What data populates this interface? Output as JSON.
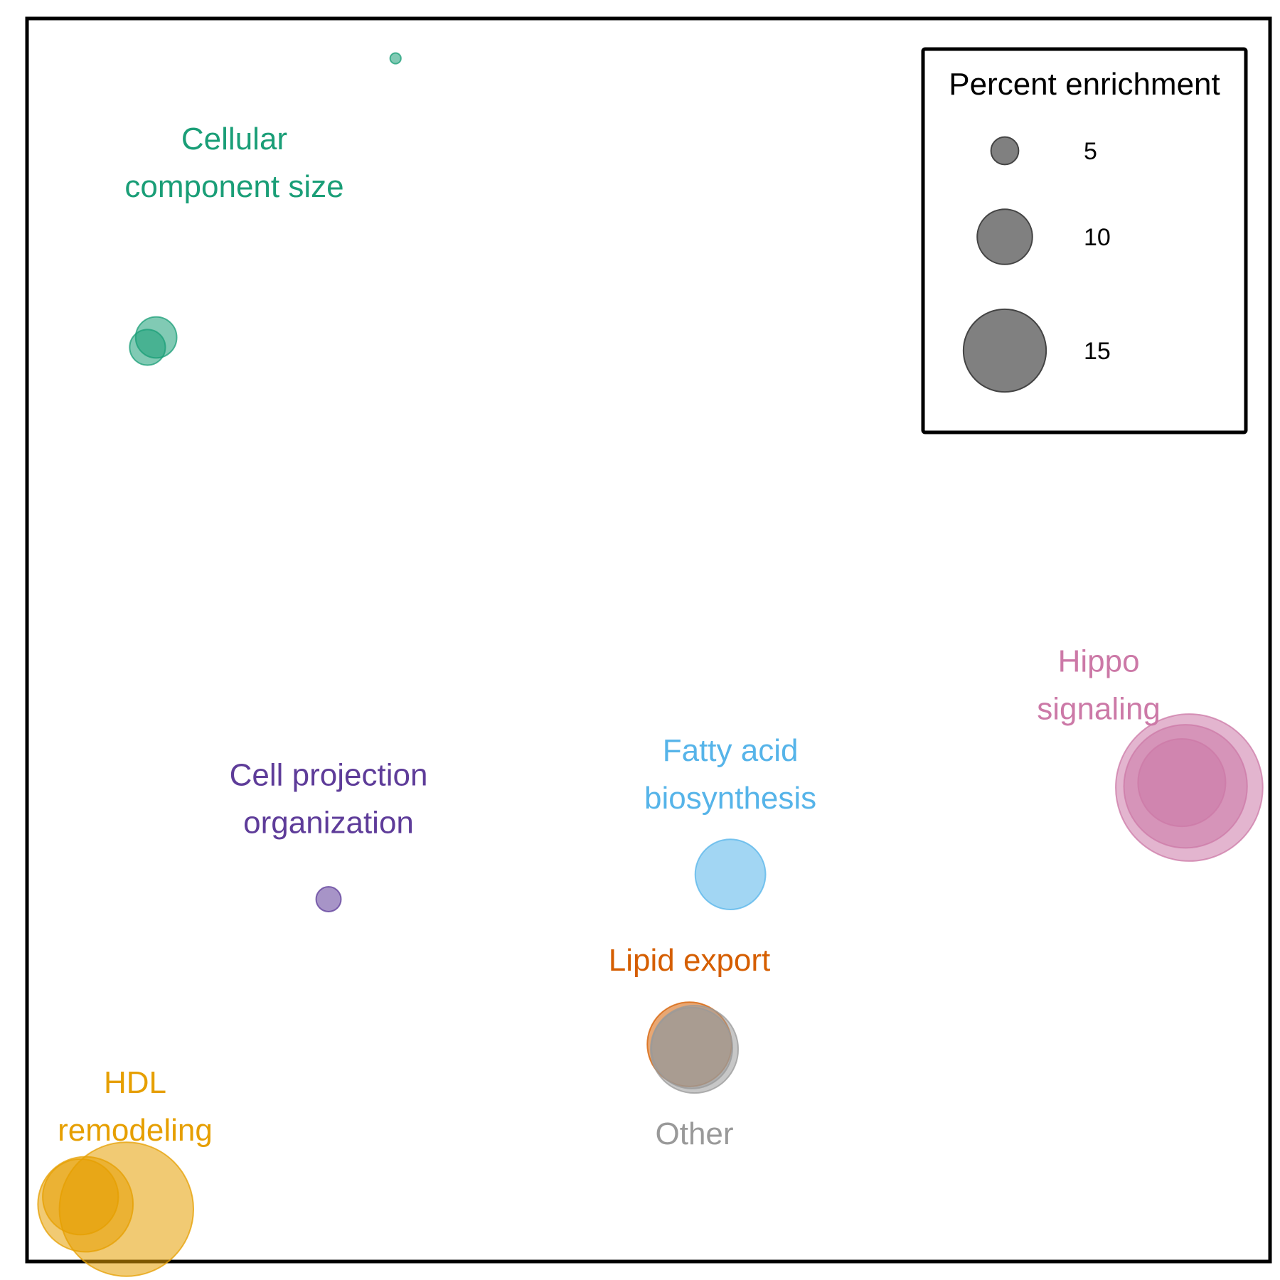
{
  "chart_data": {
    "type": "scatter",
    "title": "",
    "xlabel": "",
    "ylabel": "",
    "xlim": [
      0,
      100
    ],
    "ylim": [
      0,
      100
    ],
    "grid": false,
    "size_legend": {
      "title": "Percent enrichment",
      "placement": "top-right",
      "entries": [
        {
          "label": "5",
          "value": 5
        },
        {
          "label": "10",
          "value": 10
        },
        {
          "label": "15",
          "value": 15
        }
      ]
    },
    "clusters": [
      {
        "label": [
          "Cellular",
          "component size"
        ],
        "color": "#1a9e77",
        "label_pos": [
          16.6,
          88.5
        ],
        "points": [
          {
            "x": 29.6,
            "y": 96.9,
            "size": 1
          },
          {
            "x": 10.3,
            "y": 74.4,
            "size": 3.8
          },
          {
            "x": 9.6,
            "y": 73.6,
            "size": 3.3
          }
        ]
      },
      {
        "label": [
          "Cell projection",
          "organization"
        ],
        "color": "#5e3c99",
        "label_pos": [
          24.2,
          37.2
        ],
        "points": [
          {
            "x": 24.2,
            "y": 29.1,
            "size": 2.3
          }
        ]
      },
      {
        "label": [
          "Fatty acid",
          "biosynthesis"
        ],
        "color": "#56b4e9",
        "label_pos": [
          56.6,
          39.2
        ],
        "points": [
          {
            "x": 56.6,
            "y": 31.1,
            "size": 6.5
          }
        ]
      },
      {
        "label": [
          "Hippo",
          "signaling"
        ],
        "color": "#cc79a7",
        "label_pos": [
          86.3,
          46.4
        ],
        "points": [
          {
            "x": 93.6,
            "y": 38.1,
            "size": 13.6
          },
          {
            "x": 93.3,
            "y": 38.2,
            "size": 11.4
          },
          {
            "x": 93.0,
            "y": 38.5,
            "size": 8.1
          }
        ]
      },
      {
        "label": [
          "Lipid export"
        ],
        "color": "#d55e00",
        "label_pos": [
          53.3,
          24.2
        ],
        "points": [
          {
            "x": 53.3,
            "y": 17.4,
            "size": 7.8
          }
        ]
      },
      {
        "label": [
          "Other"
        ],
        "color": "#999999",
        "label_pos": [
          53.7,
          10.2
        ],
        "points": [
          {
            "x": 53.7,
            "y": 17.0,
            "size": 8.1
          },
          {
            "x": 53.5,
            "y": 17.1,
            "size": 7.5
          }
        ]
      },
      {
        "label": [
          "HDL",
          "remodeling"
        ],
        "color": "#e69f00",
        "label_pos": [
          8.6,
          12.4
        ],
        "points": [
          {
            "x": 7.9,
            "y": 4.1,
            "size": 12.4
          },
          {
            "x": 4.6,
            "y": 4.5,
            "size": 8.8
          },
          {
            "x": 4.2,
            "y": 5.1,
            "size": 7.0
          }
        ]
      }
    ]
  }
}
